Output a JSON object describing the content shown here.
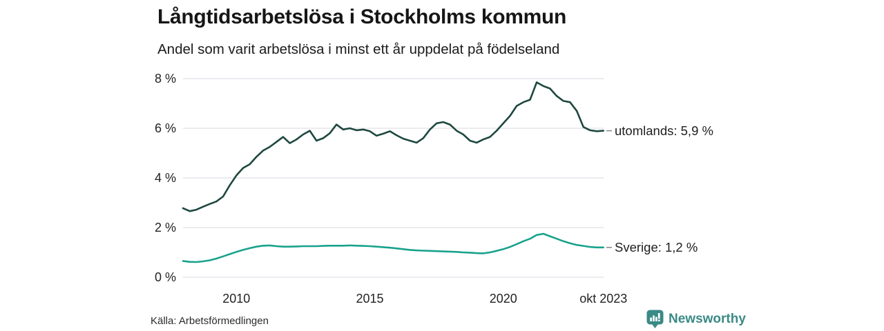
{
  "chart_data": {
    "type": "line",
    "title": "Långtidsarbetslösa i Stockholms kommun",
    "subtitle": "Andel som varit arbetslösa i minst ett år uppdelat på födelseland",
    "xlabel": "",
    "ylabel": "",
    "ylim": [
      0,
      8
    ],
    "xlim": [
      2008,
      2023.79
    ],
    "grid": "horizontal",
    "legend_position": "end-of-line-labels",
    "yticks": [
      {
        "v": 0,
        "label": "0 %"
      },
      {
        "v": 2,
        "label": "2 %"
      },
      {
        "v": 4,
        "label": "4 %"
      },
      {
        "v": 6,
        "label": "6 %"
      },
      {
        "v": 8,
        "label": "8 %"
      }
    ],
    "xticks": [
      {
        "v": 2010,
        "label": "2010"
      },
      {
        "v": 2015,
        "label": "2015"
      },
      {
        "v": 2020,
        "label": "2020"
      },
      {
        "v": 2023.75,
        "label": "okt 2023"
      }
    ],
    "x": [
      2008,
      2008.25,
      2008.5,
      2008.75,
      2009,
      2009.25,
      2009.5,
      2009.75,
      2010,
      2010.25,
      2010.5,
      2010.75,
      2011,
      2011.25,
      2011.5,
      2011.75,
      2012,
      2012.25,
      2012.5,
      2012.75,
      2013,
      2013.25,
      2013.5,
      2013.75,
      2014,
      2014.25,
      2014.5,
      2014.75,
      2015,
      2015.25,
      2015.5,
      2015.75,
      2016,
      2016.25,
      2016.5,
      2016.75,
      2017,
      2017.25,
      2017.5,
      2017.75,
      2018,
      2018.25,
      2018.5,
      2018.75,
      2019,
      2019.25,
      2019.5,
      2019.75,
      2020,
      2020.25,
      2020.5,
      2020.75,
      2021,
      2021.25,
      2021.5,
      2021.75,
      2022,
      2022.25,
      2022.5,
      2022.75,
      2023,
      2023.25,
      2023.5,
      2023.75
    ],
    "series": [
      {
        "name": "utomlands",
        "color": "#1d473f",
        "end_label": "utomlands: 5,9 %",
        "last_value": 5.9,
        "values": [
          2.78,
          2.66,
          2.72,
          2.84,
          2.95,
          3.05,
          3.25,
          3.7,
          4.1,
          4.4,
          4.55,
          4.85,
          5.1,
          5.25,
          5.45,
          5.65,
          5.4,
          5.55,
          5.75,
          5.9,
          5.5,
          5.6,
          5.8,
          6.15,
          5.95,
          6.0,
          5.92,
          5.95,
          5.88,
          5.7,
          5.78,
          5.88,
          5.72,
          5.58,
          5.5,
          5.42,
          5.6,
          5.95,
          6.2,
          6.25,
          6.15,
          5.9,
          5.75,
          5.5,
          5.42,
          5.55,
          5.65,
          5.9,
          6.2,
          6.5,
          6.9,
          7.05,
          7.15,
          7.85,
          7.7,
          7.6,
          7.3,
          7.1,
          7.05,
          6.7,
          6.05,
          5.92,
          5.88,
          5.9
        ]
      },
      {
        "name": "Sverige",
        "color": "#18a28c",
        "end_label": "Sverige: 1,2 %",
        "last_value": 1.2,
        "values": [
          0.65,
          0.62,
          0.61,
          0.64,
          0.68,
          0.75,
          0.84,
          0.93,
          1.02,
          1.1,
          1.17,
          1.23,
          1.27,
          1.28,
          1.25,
          1.23,
          1.23,
          1.24,
          1.25,
          1.25,
          1.25,
          1.26,
          1.27,
          1.27,
          1.27,
          1.28,
          1.27,
          1.26,
          1.25,
          1.23,
          1.21,
          1.19,
          1.16,
          1.13,
          1.1,
          1.08,
          1.07,
          1.06,
          1.05,
          1.04,
          1.03,
          1.02,
          1.0,
          0.99,
          0.97,
          0.96,
          1.0,
          1.06,
          1.13,
          1.22,
          1.33,
          1.45,
          1.55,
          1.7,
          1.75,
          1.65,
          1.55,
          1.45,
          1.37,
          1.3,
          1.26,
          1.22,
          1.2,
          1.2
        ]
      }
    ]
  },
  "footer": {
    "source": "Källa: Arbetsförmedlingen",
    "brand": "Newsworthy"
  },
  "colors": {
    "accent_dark": "#1d473f",
    "accent_teal": "#18a28c",
    "brand": "#3a8a86",
    "grid": "#e6e6eb",
    "connector": "#8c8c8c",
    "text": "#161616"
  }
}
